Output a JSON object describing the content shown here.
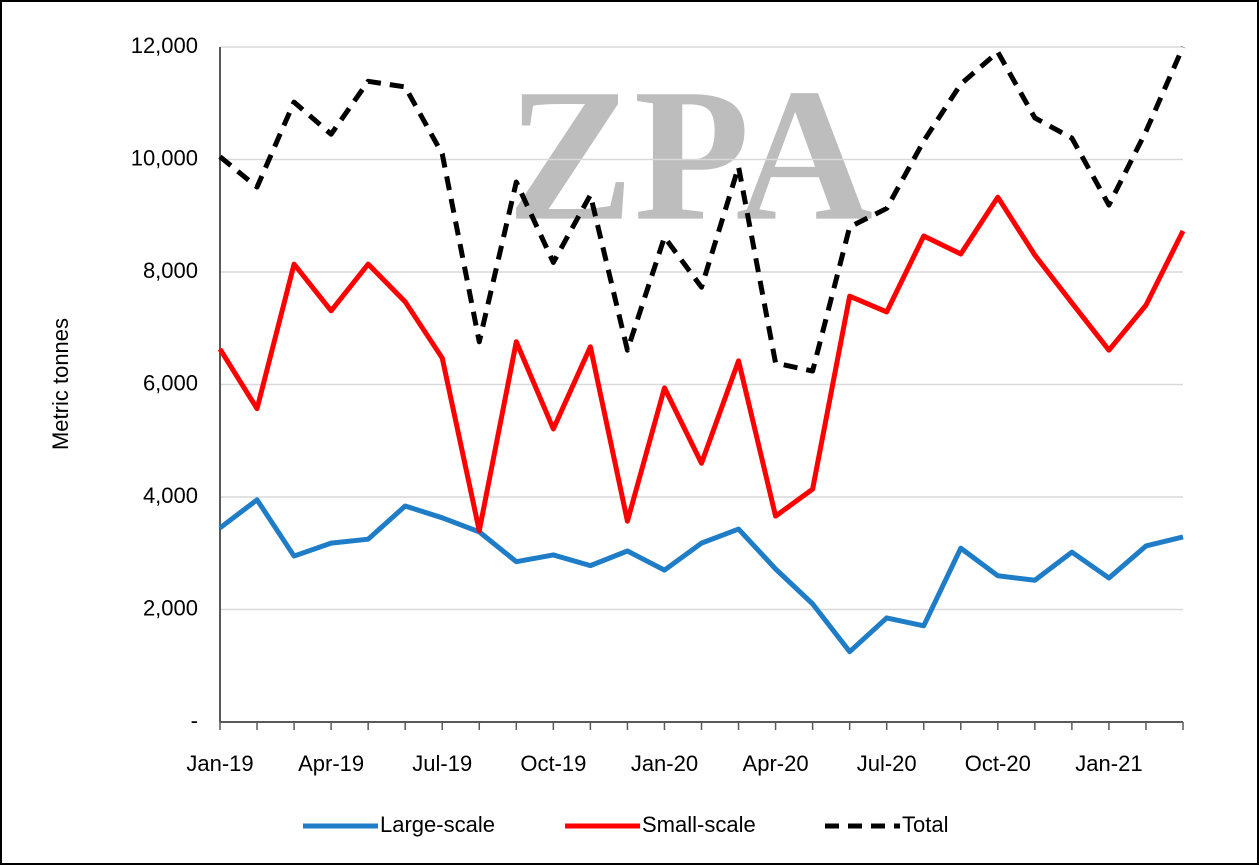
{
  "chart_data": {
    "type": "line",
    "watermark": "ZPA",
    "y_label": "Metric tonnes",
    "categories": [
      "Jan-19",
      null,
      null,
      "Apr-19",
      null,
      null,
      "Jul-19",
      null,
      null,
      "Oct-19",
      null,
      null,
      "Jan-20",
      null,
      null,
      "Apr-20",
      null,
      null,
      "Jul-20",
      null,
      null,
      "Oct-20",
      null,
      null,
      "Jan-21",
      null,
      null
    ],
    "series": [
      {
        "name": "Large-scale",
        "color": "#1f7dc8",
        "dash": false,
        "values": [
          3450,
          3950,
          2950,
          3180,
          3250,
          3840,
          3630,
          3380,
          2850,
          2970,
          2780,
          3040,
          2700,
          3180,
          3430,
          2720,
          2100,
          1250,
          1850,
          1710,
          3090,
          2600,
          2520,
          3020,
          2560,
          3130,
          3290
        ]
      },
      {
        "name": "Small-scale",
        "color": "#ff0000",
        "dash": false,
        "values": [
          6630,
          5570,
          8140,
          7310,
          8140,
          7470,
          6470,
          3400,
          6760,
          5210,
          6670,
          3570,
          5940,
          4600,
          6420,
          3660,
          4140,
          7570,
          7290,
          8640,
          8320,
          9330,
          8300,
          7450,
          6610,
          7410,
          8730
        ]
      },
      {
        "name": "Total",
        "color": "#000000",
        "dash": true,
        "values": [
          10050,
          9510,
          11020,
          10450,
          11390,
          11290,
          10100,
          6760,
          9600,
          8170,
          9370,
          6610,
          8620,
          7730,
          9870,
          6380,
          6240,
          8800,
          9130,
          10330,
          11340,
          11910,
          10740,
          10380,
          9190,
          10500,
          12000
        ]
      }
    ],
    "ylim": [
      0,
      12000
    ],
    "yticks": [
      {
        "value": 0,
        "label": "-"
      },
      {
        "value": 2000,
        "label": "2,000"
      },
      {
        "value": 4000,
        "label": "4,000"
      },
      {
        "value": 6000,
        "label": "6,000"
      },
      {
        "value": 8000,
        "label": "8,000"
      },
      {
        "value": 10000,
        "label": "10,000"
      },
      {
        "value": 12000,
        "label": "12,000"
      }
    ],
    "grid": true,
    "legend": "bottom"
  }
}
